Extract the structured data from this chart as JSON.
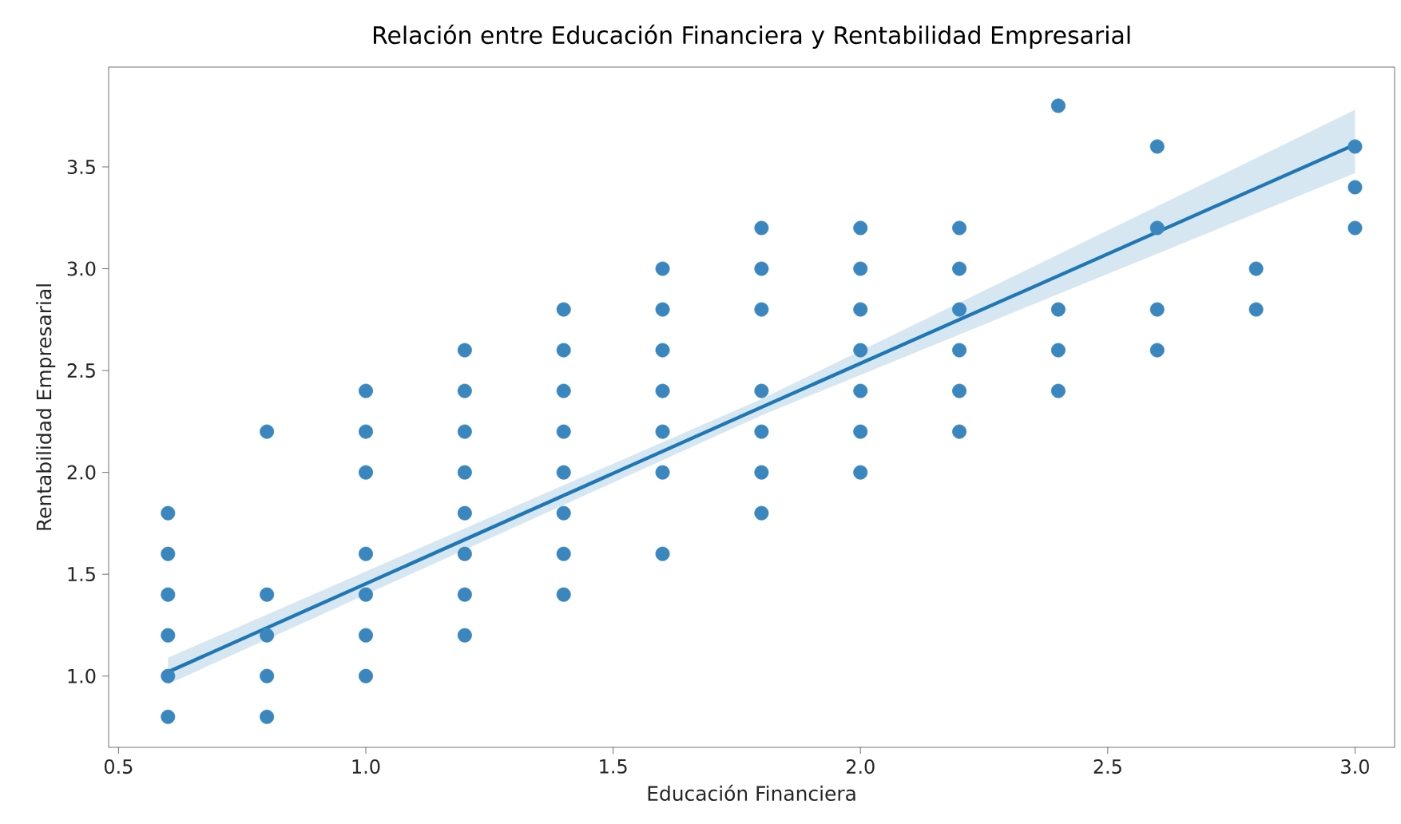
{
  "chart_data": {
    "type": "scatter",
    "title": "Relación entre Educación Financiera y Rentabilidad Empresarial",
    "xlabel": "Educación Financiera",
    "ylabel": "Rentabilidad Empresarial",
    "xlim": [
      0.48,
      3.08
    ],
    "ylim": [
      0.65,
      3.99
    ],
    "xticks": [
      {
        "value": 0.5,
        "label": "0.5"
      },
      {
        "value": 1.0,
        "label": "1.0"
      },
      {
        "value": 1.5,
        "label": "1.5"
      },
      {
        "value": 2.0,
        "label": "2.0"
      },
      {
        "value": 2.5,
        "label": "2.5"
      },
      {
        "value": 3.0,
        "label": "3.0"
      }
    ],
    "yticks": [
      {
        "value": 1.0,
        "label": "1.0"
      },
      {
        "value": 1.5,
        "label": "1.5"
      },
      {
        "value": 2.0,
        "label": "2.0"
      },
      {
        "value": 2.5,
        "label": "2.5"
      },
      {
        "value": 3.0,
        "label": "3.0"
      },
      {
        "value": 3.5,
        "label": "3.5"
      }
    ],
    "series": [
      {
        "marker": "circle",
        "color": "#3a86bf",
        "x": [
          0.6,
          0.6,
          0.6,
          0.6,
          0.6,
          0.6,
          0.8,
          0.8,
          0.8,
          0.8,
          0.8,
          1.0,
          1.0,
          1.0,
          1.0,
          1.0,
          1.0,
          1.0,
          1.2,
          1.2,
          1.2,
          1.2,
          1.2,
          1.2,
          1.2,
          1.2,
          1.4,
          1.4,
          1.4,
          1.4,
          1.4,
          1.4,
          1.4,
          1.4,
          1.6,
          1.6,
          1.6,
          1.6,
          1.6,
          1.6,
          1.6,
          1.8,
          1.8,
          1.8,
          1.8,
          1.8,
          1.8,
          1.8,
          2.0,
          2.0,
          2.0,
          2.0,
          2.0,
          2.0,
          2.0,
          2.2,
          2.2,
          2.2,
          2.2,
          2.2,
          2.2,
          2.4,
          2.4,
          2.4,
          2.4,
          2.6,
          2.6,
          2.6,
          2.6,
          2.8,
          2.8,
          3.0,
          3.0,
          3.0
        ],
        "values": [
          0.8,
          1.0,
          1.2,
          1.4,
          1.6,
          1.8,
          0.8,
          1.0,
          1.2,
          1.4,
          2.2,
          1.0,
          1.2,
          1.4,
          1.6,
          2.0,
          2.2,
          2.4,
          1.2,
          1.4,
          1.6,
          1.8,
          2.0,
          2.2,
          2.4,
          2.6,
          1.4,
          1.6,
          1.8,
          2.0,
          2.2,
          2.4,
          2.6,
          2.8,
          1.6,
          2.0,
          2.2,
          2.4,
          2.6,
          2.8,
          3.0,
          1.8,
          2.0,
          2.2,
          2.4,
          2.8,
          3.0,
          3.2,
          2.0,
          2.2,
          2.4,
          2.6,
          2.8,
          3.0,
          3.2,
          2.2,
          2.4,
          2.6,
          2.8,
          3.0,
          3.2,
          2.4,
          2.6,
          2.8,
          3.8,
          2.6,
          2.8,
          3.2,
          3.6,
          2.8,
          3.0,
          3.2,
          3.4,
          3.6
        ]
      },
      {
        "type": "line",
        "marker": "none",
        "color": "#1f77b4",
        "x": [
          0.6,
          1.8,
          3.0
        ],
        "values": [
          1.02,
          2.32,
          3.61
        ],
        "lower": [
          0.96,
          2.28,
          3.47
        ],
        "upper": [
          1.09,
          2.36,
          3.78
        ]
      }
    ]
  }
}
